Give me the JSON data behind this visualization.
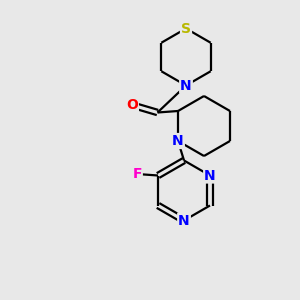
{
  "background_color": "#e8e8e8",
  "atom_colors": {
    "S": "#b8b800",
    "N": "#0000ff",
    "O": "#ff0000",
    "F": "#ff00cc",
    "C": "#000000"
  },
  "bond_color": "#000000",
  "bond_width": 1.6,
  "font_size_atoms": 10,
  "figsize": [
    3.0,
    3.0
  ],
  "dpi": 100,
  "xlim": [
    0,
    10
  ],
  "ylim": [
    0,
    10
  ]
}
